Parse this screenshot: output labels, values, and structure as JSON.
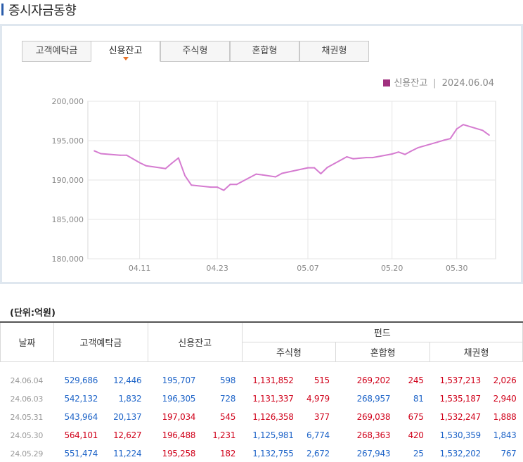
{
  "page": {
    "title": "증시자금동향"
  },
  "tabs": [
    {
      "label": "고객예탁금",
      "active": false
    },
    {
      "label": "신용잔고",
      "active": true
    },
    {
      "label": "주식형",
      "active": false
    },
    {
      "label": "혼합형",
      "active": false
    },
    {
      "label": "채권형",
      "active": false
    }
  ],
  "legend": {
    "series": "신용잔고",
    "separator": "|",
    "date": "2024.06.04",
    "color": "#a0307e"
  },
  "chart_data": {
    "type": "line",
    "series": [
      {
        "name": "신용잔고",
        "color": "#d57bd0",
        "points": [
          [
            "2024-04-04",
            193700
          ],
          [
            "2024-04-05",
            193350
          ],
          [
            "2024-04-08",
            193150
          ],
          [
            "2024-04-09",
            193150
          ],
          [
            "2024-04-11",
            192200
          ],
          [
            "2024-04-12",
            191800
          ],
          [
            "2024-04-15",
            191450
          ],
          [
            "2024-04-16",
            192150
          ],
          [
            "2024-04-17",
            192800
          ],
          [
            "2024-04-18",
            190550
          ],
          [
            "2024-04-19",
            189350
          ],
          [
            "2024-04-22",
            189100
          ],
          [
            "2024-04-23",
            189100
          ],
          [
            "2024-04-24",
            188700
          ],
          [
            "2024-04-25",
            189450
          ],
          [
            "2024-04-26",
            189450
          ],
          [
            "2024-04-29",
            190750
          ],
          [
            "2024-04-30",
            190650
          ],
          [
            "2024-05-02",
            190400
          ],
          [
            "2024-05-03",
            190850
          ],
          [
            "2024-05-07",
            191550
          ],
          [
            "2024-05-08",
            191550
          ],
          [
            "2024-05-09",
            190800
          ],
          [
            "2024-05-10",
            191600
          ],
          [
            "2024-05-13",
            192950
          ],
          [
            "2024-05-14",
            192700
          ],
          [
            "2024-05-16",
            192850
          ],
          [
            "2024-05-17",
            192850
          ],
          [
            "2024-05-20",
            193300
          ],
          [
            "2024-05-21",
            193550
          ],
          [
            "2024-05-22",
            193250
          ],
          [
            "2024-05-23",
            193700
          ],
          [
            "2024-05-24",
            194100
          ],
          [
            "2024-05-27",
            194800
          ],
          [
            "2024-05-28",
            195050
          ],
          [
            "2024-05-29",
            195258
          ],
          [
            "2024-05-30",
            196488
          ],
          [
            "2024-05-31",
            197034
          ],
          [
            "2024-06-03",
            196305
          ],
          [
            "2024-06-04",
            195707
          ]
        ]
      }
    ],
    "yaxis": {
      "min": 180000,
      "max": 200000,
      "ticks": [
        "180,000",
        "185,000",
        "190,000",
        "195,000",
        "200,000"
      ]
    },
    "xaxis": {
      "ticks": [
        {
          "label": "04.11",
          "date": "2024-04-11"
        },
        {
          "label": "04.23",
          "date": "2024-04-23"
        },
        {
          "label": "05.07",
          "date": "2024-05-07"
        },
        {
          "label": "05.20",
          "date": "2024-05-20"
        },
        {
          "label": "05.30",
          "date": "2024-05-30"
        }
      ]
    },
    "grid": true,
    "legend_position": "top-right"
  },
  "unit_label": "(단위:억원)",
  "table": {
    "headers": {
      "date": "날짜",
      "deposit": "고객예탁금",
      "credit": "신용잔고",
      "fund": "펀드",
      "stock": "주식형",
      "mixed": "혼합형",
      "bond": "채권형"
    },
    "rows": [
      {
        "date": "24.06.04",
        "cells": [
          [
            "529,686",
            "down"
          ],
          [
            "12,446",
            "down"
          ],
          [
            "195,707",
            "down"
          ],
          [
            "598",
            "down"
          ],
          [
            "1,131,852",
            "up"
          ],
          [
            "515",
            "up"
          ],
          [
            "269,202",
            "up"
          ],
          [
            "245",
            "up"
          ],
          [
            "1,537,213",
            "up"
          ],
          [
            "2,026",
            "up"
          ]
        ]
      },
      {
        "date": "24.06.03",
        "cells": [
          [
            "542,132",
            "down"
          ],
          [
            "1,832",
            "down"
          ],
          [
            "196,305",
            "down"
          ],
          [
            "728",
            "down"
          ],
          [
            "1,131,337",
            "up"
          ],
          [
            "4,979",
            "up"
          ],
          [
            "268,957",
            "down"
          ],
          [
            "81",
            "down"
          ],
          [
            "1,535,187",
            "up"
          ],
          [
            "2,940",
            "up"
          ]
        ]
      },
      {
        "date": "24.05.31",
        "cells": [
          [
            "543,964",
            "down"
          ],
          [
            "20,137",
            "down"
          ],
          [
            "197,034",
            "up"
          ],
          [
            "545",
            "up"
          ],
          [
            "1,126,358",
            "up"
          ],
          [
            "377",
            "up"
          ],
          [
            "269,038",
            "up"
          ],
          [
            "675",
            "up"
          ],
          [
            "1,532,247",
            "up"
          ],
          [
            "1,888",
            "up"
          ]
        ]
      },
      {
        "date": "24.05.30",
        "cells": [
          [
            "564,101",
            "up"
          ],
          [
            "12,627",
            "up"
          ],
          [
            "196,488",
            "up"
          ],
          [
            "1,231",
            "up"
          ],
          [
            "1,125,981",
            "down"
          ],
          [
            "6,774",
            "down"
          ],
          [
            "268,363",
            "up"
          ],
          [
            "420",
            "up"
          ],
          [
            "1,530,359",
            "down"
          ],
          [
            "1,843",
            "down"
          ]
        ]
      },
      {
        "date": "24.05.29",
        "cells": [
          [
            "551,474",
            "down"
          ],
          [
            "11,224",
            "down"
          ],
          [
            "195,258",
            "up"
          ],
          [
            "182",
            "up"
          ],
          [
            "1,132,755",
            "down"
          ],
          [
            "2,672",
            "down"
          ],
          [
            "267,943",
            "down"
          ],
          [
            "25",
            "down"
          ],
          [
            "1,532,202",
            "down"
          ],
          [
            "767",
            "down"
          ]
        ]
      }
    ]
  }
}
